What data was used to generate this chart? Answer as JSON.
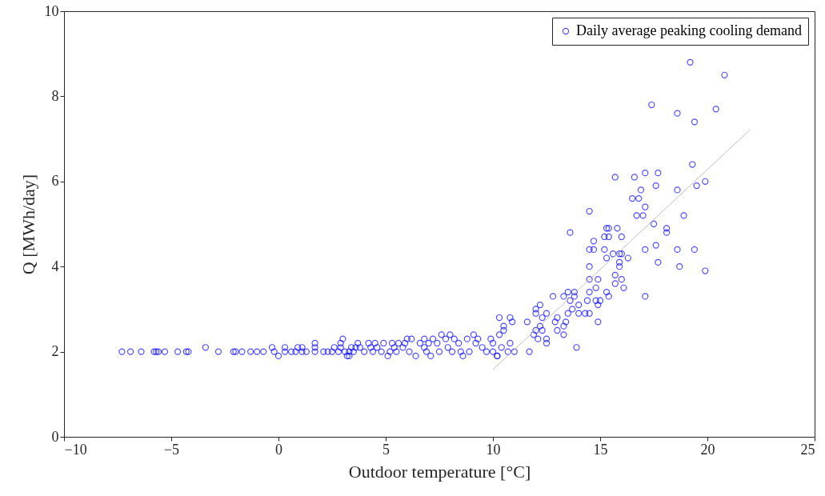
{
  "chart_data": {
    "type": "scatter",
    "xlabel": "Outdoor temperature [°C]",
    "ylabel": "Q [MWh/day]",
    "xlim": [
      -10,
      25
    ],
    "ylim": [
      0,
      10
    ],
    "xticks": [
      -10,
      -5,
      0,
      5,
      10,
      15,
      20,
      25
    ],
    "yticks": [
      0,
      2,
      4,
      6,
      8,
      10
    ],
    "grid": false,
    "legend": "top right",
    "marker": "circle",
    "series": [
      {
        "name": "Daily average peaking cooling demand",
        "color": "#0000ff",
        "x": [
          -7.3,
          -6.9,
          -6.4,
          -5.8,
          -5.7,
          -5.6,
          -5.3,
          -4.7,
          -4.3,
          -4.2,
          -3.4,
          -2.8,
          -2.1,
          -2.0,
          -1.7,
          -1.3,
          -1.0,
          -0.7,
          -0.3,
          -0.2,
          0.0,
          0.3,
          0.3,
          0.6,
          0.8,
          0.9,
          1.1,
          1.1,
          1.3,
          1.7,
          1.7,
          1.7,
          2.1,
          2.3,
          2.5,
          2.6,
          2.8,
          2.9,
          2.9,
          3.0,
          3.1,
          3.2,
          3.3,
          3.3,
          3.4,
          3.5,
          3.6,
          3.7,
          3.8,
          4.0,
          4.2,
          4.3,
          4.4,
          4.5,
          4.6,
          4.8,
          4.9,
          5.1,
          5.2,
          5.3,
          5.4,
          5.5,
          5.6,
          5.8,
          5.9,
          6.0,
          6.1,
          6.2,
          6.4,
          6.6,
          6.8,
          6.8,
          6.9,
          7.0,
          7.1,
          7.2,
          7.4,
          7.5,
          7.6,
          7.8,
          7.9,
          8.0,
          8.1,
          8.2,
          8.4,
          8.5,
          8.6,
          8.8,
          8.9,
          9.1,
          9.2,
          9.3,
          9.5,
          9.7,
          10.0,
          10.2,
          10.4,
          19.2,
          20.8,
          17.4,
          18.6,
          20.4,
          19.4,
          19.3,
          15.7,
          16.6,
          17.1,
          17.7,
          16.9,
          17.6,
          18.6,
          19.5,
          19.9,
          16.5,
          16.8,
          17.1,
          16.7,
          17.0,
          18.9,
          14.5,
          13.6,
          17.5,
          18.1,
          18.1,
          15.3,
          15.4,
          15.8,
          15.2,
          15.4,
          16.0,
          14.7,
          14.5,
          14.7,
          15.2,
          17.1,
          17.6,
          18.6,
          19.4,
          15.3,
          15.6,
          15.9,
          16.0,
          16.3,
          15.9,
          15.9,
          14.5,
          17.7,
          18.7,
          19.9,
          15.7,
          16.0,
          14.5,
          14.9,
          15.7,
          16.1,
          14.8,
          17.1,
          14.5,
          15.3,
          15.4,
          12.8,
          13.5,
          13.8,
          13.3,
          13.8,
          13.6,
          14.4,
          14.8,
          15.0,
          12.0,
          12.2,
          14.0,
          14.9,
          12.0,
          12.5,
          13.7,
          14.3,
          14.5,
          14.0,
          13.0,
          13.5,
          12.3,
          10.3,
          10.8,
          10.9,
          11.6,
          12.9,
          13.4,
          14.9,
          10.5,
          10.5,
          10.3,
          12.0,
          12.2,
          12.3,
          13.0,
          13.3,
          11.9,
          13.3,
          12.1,
          12.5,
          12.5,
          9.9,
          10.8,
          10.0,
          13.9,
          11.7,
          10.7,
          11.0,
          10.2
        ],
        "values": [
          2.0,
          2.0,
          2.0,
          2.0,
          2.0,
          2.0,
          2.0,
          2.0,
          2.0,
          2.0,
          2.1,
          2.0,
          2.0,
          2.0,
          2.0,
          2.0,
          2.0,
          2.0,
          2.1,
          2.0,
          1.9,
          2.1,
          2.0,
          2.0,
          2.0,
          2.1,
          2.0,
          2.1,
          2.0,
          2.0,
          2.1,
          2.2,
          2.0,
          2.0,
          2.0,
          2.1,
          2.0,
          2.1,
          2.2,
          2.3,
          2.0,
          1.9,
          2.0,
          1.9,
          2.1,
          2.0,
          2.1,
          2.2,
          2.1,
          2.0,
          2.2,
          2.1,
          2.0,
          2.2,
          2.1,
          2.0,
          2.2,
          1.9,
          2.0,
          2.2,
          2.1,
          2.0,
          2.2,
          2.1,
          2.2,
          2.3,
          2.0,
          2.3,
          1.9,
          2.2,
          2.1,
          2.3,
          2.0,
          2.2,
          1.9,
          2.3,
          2.2,
          2.0,
          2.4,
          2.3,
          2.1,
          2.4,
          2.0,
          2.3,
          2.2,
          2.0,
          1.9,
          2.3,
          2.0,
          2.4,
          2.2,
          2.3,
          2.1,
          2.0,
          2.0,
          1.9,
          2.1,
          8.8,
          8.5,
          7.8,
          7.6,
          7.7,
          7.4,
          6.4,
          6.1,
          6.1,
          6.2,
          6.2,
          5.8,
          5.9,
          5.8,
          5.9,
          6.0,
          5.6,
          5.6,
          5.4,
          5.2,
          5.2,
          5.2,
          5.3,
          4.8,
          5.0,
          4.9,
          4.8,
          4.9,
          4.9,
          4.9,
          4.7,
          4.7,
          4.7,
          4.6,
          4.4,
          4.4,
          4.4,
          4.4,
          4.5,
          4.4,
          4.4,
          4.2,
          4.3,
          4.3,
          4.3,
          4.2,
          4.1,
          4.0,
          4.0,
          4.1,
          4.0,
          3.9,
          3.8,
          3.7,
          3.7,
          3.7,
          3.6,
          3.5,
          3.5,
          3.3,
          3.4,
          3.4,
          3.3,
          3.3,
          3.4,
          3.4,
          3.3,
          3.3,
          3.2,
          3.2,
          3.2,
          3.2,
          3.0,
          3.1,
          3.1,
          3.1,
          2.9,
          2.9,
          3.0,
          2.9,
          2.9,
          2.9,
          2.8,
          2.9,
          2.8,
          2.8,
          2.8,
          2.7,
          2.7,
          2.7,
          2.7,
          2.7,
          2.6,
          2.5,
          2.4,
          2.5,
          2.6,
          2.5,
          2.5,
          2.6,
          2.4,
          2.4,
          2.3,
          2.3,
          2.2,
          2.3,
          2.2,
          2.2,
          2.1,
          2.0,
          2.0,
          2.0,
          1.9
        ]
      },
      {
        "type": "line",
        "marker": "none",
        "color": "#c0c0c0",
        "x": [
          10,
          22
        ],
        "values": [
          1.58,
          7.22
        ]
      }
    ]
  }
}
